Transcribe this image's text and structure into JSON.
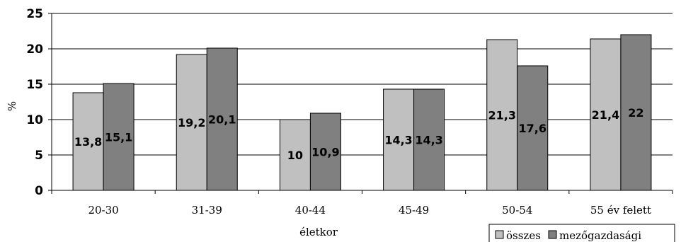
{
  "chart_data": {
    "type": "bar",
    "xlabel": "életkor",
    "ylabel": "%",
    "ylim": [
      0,
      25
    ],
    "yticks": [
      0,
      5,
      10,
      15,
      20,
      25
    ],
    "grid": true,
    "legend_position": "bottom-right",
    "categories": [
      "20-30",
      "31-39",
      "40-44",
      "45-49",
      "50-54",
      "55 év felett"
    ],
    "series": [
      {
        "name": "összes",
        "color": "#c0c0c0",
        "values": [
          13.8,
          19.2,
          10,
          14.3,
          21.3,
          21.4
        ],
        "labels": [
          "13,8",
          "19,2",
          "10",
          "14,3",
          "21,3",
          "21,4"
        ]
      },
      {
        "name": "mezőgazdasági",
        "color": "#808080",
        "values": [
          15.1,
          20.1,
          10.9,
          14.3,
          17.6,
          22
        ],
        "labels": [
          "15,1",
          "20,1",
          "10,9",
          "14,3",
          "17,6",
          "22"
        ]
      }
    ]
  }
}
